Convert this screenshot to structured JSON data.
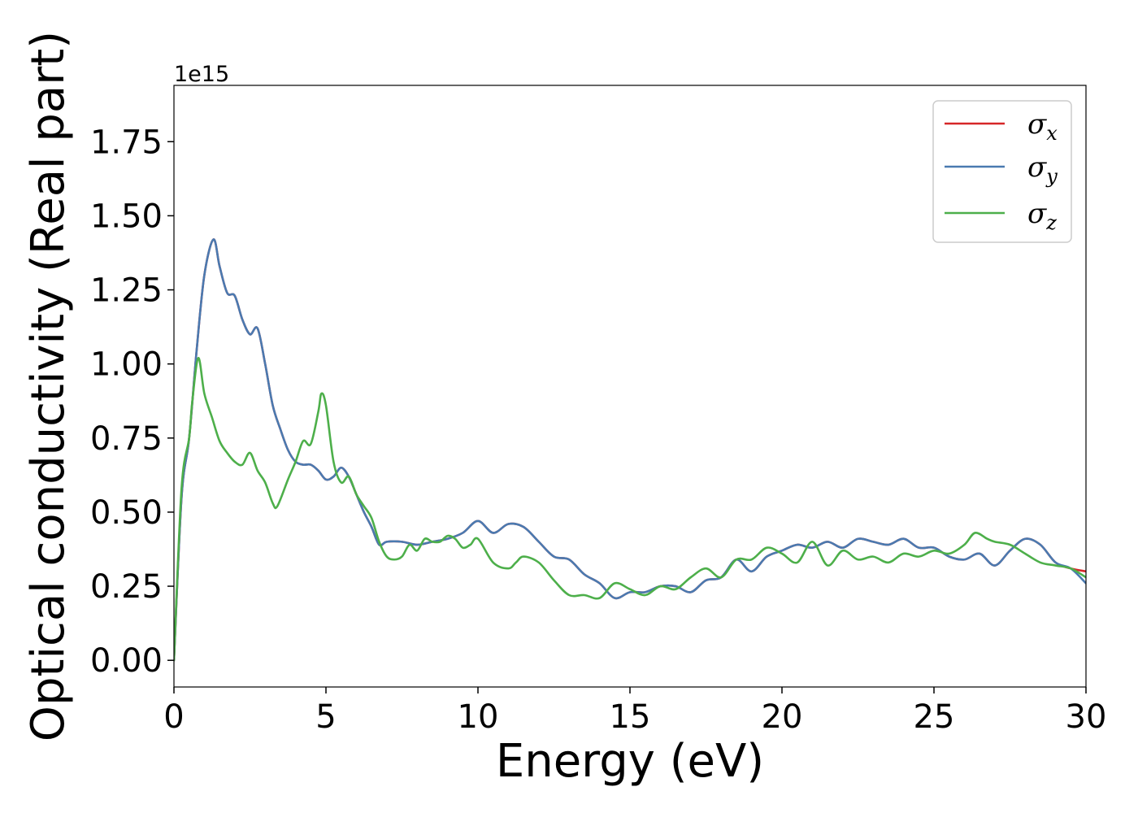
{
  "chart_data": {
    "type": "line",
    "xlabel": "Energy (eV)",
    "ylabel": "Optical conductivity (Real part)",
    "offset_label": "1e15",
    "xlim": [
      0,
      30
    ],
    "ylim": [
      -0.09,
      1.94
    ],
    "x_ticks": [
      0,
      5,
      10,
      15,
      20,
      25,
      30
    ],
    "x_tick_labels": [
      "0",
      "5",
      "10",
      "15",
      "20",
      "25",
      "30"
    ],
    "y_ticks": [
      0,
      0.25,
      0.5,
      0.75,
      1.0,
      1.25,
      1.5,
      1.75
    ],
    "y_tick_labels": [
      "0.00",
      "0.25",
      "0.50",
      "0.75",
      "1.00",
      "1.25",
      "1.50",
      "1.75"
    ],
    "grid": false,
    "legend_position": "top-right",
    "series": [
      {
        "name": "σx",
        "legend_base": "σ",
        "legend_sub": "x",
        "color": "#d62728",
        "x": [
          0,
          0.25,
          0.5,
          0.75,
          1.0,
          1.3,
          1.5,
          1.75,
          2.0,
          2.25,
          2.5,
          2.75,
          3.0,
          3.25,
          3.5,
          3.75,
          4.0,
          4.25,
          4.5,
          4.75,
          5.0,
          5.25,
          5.5,
          5.75,
          6.0,
          6.25,
          6.5,
          6.75,
          7.0,
          7.5,
          8.0,
          8.5,
          9.0,
          9.5,
          10.0,
          10.5,
          11.0,
          11.5,
          12.0,
          12.5,
          13.0,
          13.5,
          14.0,
          14.5,
          15.0,
          15.5,
          16.0,
          16.5,
          17.0,
          17.5,
          18.0,
          18.5,
          19.0,
          19.5,
          20.0,
          20.5,
          21.0,
          21.5,
          22.0,
          22.5,
          23.0,
          23.5,
          24.0,
          24.5,
          25.0,
          25.5,
          26.0,
          26.5,
          27.0,
          27.5,
          28.0,
          28.5,
          29.0,
          29.5,
          30.0
        ],
        "y": [
          0.0,
          0.55,
          0.75,
          1.05,
          1.3,
          1.42,
          1.33,
          1.24,
          1.23,
          1.15,
          1.1,
          1.12,
          1.0,
          0.86,
          0.78,
          0.71,
          0.67,
          0.66,
          0.66,
          0.64,
          0.61,
          0.62,
          0.65,
          0.62,
          0.56,
          0.5,
          0.45,
          0.39,
          0.4,
          0.4,
          0.39,
          0.4,
          0.41,
          0.43,
          0.47,
          0.43,
          0.46,
          0.45,
          0.4,
          0.35,
          0.34,
          0.29,
          0.26,
          0.21,
          0.23,
          0.23,
          0.25,
          0.25,
          0.23,
          0.27,
          0.28,
          0.34,
          0.3,
          0.35,
          0.37,
          0.39,
          0.38,
          0.4,
          0.38,
          0.41,
          0.4,
          0.39,
          0.41,
          0.38,
          0.38,
          0.35,
          0.34,
          0.36,
          0.32,
          0.37,
          0.41,
          0.39,
          0.33,
          0.31,
          0.3
        ]
      },
      {
        "name": "σy",
        "legend_base": "σ",
        "legend_sub": "y",
        "color": "#4a7ab0",
        "x": [
          0,
          0.25,
          0.5,
          0.75,
          1.0,
          1.3,
          1.5,
          1.75,
          2.0,
          2.25,
          2.5,
          2.75,
          3.0,
          3.25,
          3.5,
          3.75,
          4.0,
          4.25,
          4.5,
          4.75,
          5.0,
          5.25,
          5.5,
          5.75,
          6.0,
          6.25,
          6.5,
          6.75,
          7.0,
          7.5,
          8.0,
          8.5,
          9.0,
          9.5,
          10.0,
          10.5,
          11.0,
          11.5,
          12.0,
          12.5,
          13.0,
          13.5,
          14.0,
          14.5,
          15.0,
          15.5,
          16.0,
          16.5,
          17.0,
          17.5,
          18.0,
          18.5,
          19.0,
          19.5,
          20.0,
          20.5,
          21.0,
          21.5,
          22.0,
          22.5,
          23.0,
          23.5,
          24.0,
          24.5,
          25.0,
          25.5,
          26.0,
          26.5,
          27.0,
          27.5,
          28.0,
          28.5,
          29.0,
          29.5,
          30.0
        ],
        "y": [
          0.0,
          0.55,
          0.75,
          1.05,
          1.3,
          1.42,
          1.33,
          1.24,
          1.23,
          1.15,
          1.1,
          1.12,
          1.0,
          0.86,
          0.78,
          0.71,
          0.67,
          0.66,
          0.66,
          0.64,
          0.61,
          0.62,
          0.65,
          0.62,
          0.56,
          0.5,
          0.45,
          0.39,
          0.4,
          0.4,
          0.39,
          0.4,
          0.41,
          0.43,
          0.47,
          0.43,
          0.46,
          0.45,
          0.4,
          0.35,
          0.34,
          0.29,
          0.26,
          0.21,
          0.23,
          0.23,
          0.25,
          0.25,
          0.23,
          0.27,
          0.28,
          0.34,
          0.3,
          0.35,
          0.37,
          0.39,
          0.38,
          0.4,
          0.38,
          0.41,
          0.4,
          0.39,
          0.41,
          0.38,
          0.38,
          0.35,
          0.34,
          0.36,
          0.32,
          0.37,
          0.41,
          0.39,
          0.33,
          0.31,
          0.26
        ]
      },
      {
        "name": "σz",
        "legend_base": "σ",
        "legend_sub": "z",
        "color": "#4daf4a",
        "x": [
          0,
          0.25,
          0.5,
          0.6,
          0.8,
          1.0,
          1.25,
          1.5,
          1.75,
          2.0,
          2.25,
          2.5,
          2.75,
          3.0,
          3.25,
          3.4,
          3.75,
          4.0,
          4.25,
          4.5,
          4.75,
          4.85,
          5.0,
          5.25,
          5.5,
          5.75,
          6.0,
          6.25,
          6.5,
          6.75,
          7.0,
          7.25,
          7.5,
          7.75,
          8.0,
          8.25,
          8.5,
          8.75,
          9.0,
          9.25,
          9.5,
          9.75,
          10.0,
          10.5,
          11.0,
          11.25,
          11.5,
          12.0,
          12.5,
          13.0,
          13.5,
          14.0,
          14.5,
          15.0,
          15.5,
          16.0,
          16.5,
          17.0,
          17.5,
          18.0,
          18.5,
          19.0,
          19.5,
          20.0,
          20.5,
          21.0,
          21.5,
          22.0,
          22.5,
          23.0,
          23.5,
          24.0,
          24.5,
          25.0,
          25.5,
          26.0,
          26.35,
          26.75,
          27.0,
          27.5,
          28.0,
          28.5,
          29.0,
          29.5,
          30.0
        ],
        "y": [
          0.0,
          0.58,
          0.75,
          0.87,
          1.02,
          0.9,
          0.82,
          0.74,
          0.7,
          0.67,
          0.66,
          0.7,
          0.64,
          0.6,
          0.53,
          0.52,
          0.61,
          0.67,
          0.74,
          0.73,
          0.84,
          0.9,
          0.86,
          0.67,
          0.6,
          0.62,
          0.56,
          0.52,
          0.48,
          0.4,
          0.35,
          0.34,
          0.35,
          0.39,
          0.37,
          0.41,
          0.4,
          0.4,
          0.42,
          0.41,
          0.38,
          0.39,
          0.41,
          0.33,
          0.31,
          0.33,
          0.35,
          0.33,
          0.27,
          0.22,
          0.22,
          0.21,
          0.26,
          0.24,
          0.22,
          0.25,
          0.24,
          0.28,
          0.31,
          0.28,
          0.34,
          0.34,
          0.38,
          0.36,
          0.33,
          0.4,
          0.32,
          0.37,
          0.34,
          0.35,
          0.33,
          0.36,
          0.35,
          0.37,
          0.36,
          0.39,
          0.43,
          0.41,
          0.4,
          0.39,
          0.36,
          0.33,
          0.32,
          0.31,
          0.28
        ]
      }
    ]
  }
}
